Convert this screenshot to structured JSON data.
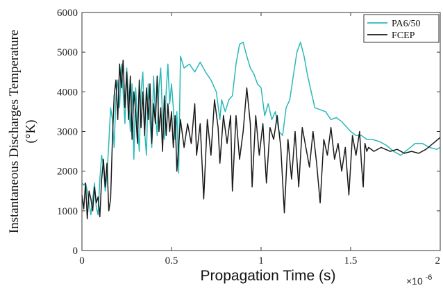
{
  "chart_data": {
    "type": "line",
    "title": "",
    "xlabel": "Propagation Time (s)",
    "ylabel_line1": "Instantaneous Discharges Temperature",
    "ylabel_line2": "(°K)",
    "x_multiplier": "×10",
    "x_multiplier_exp": "-6",
    "xlim": [
      0,
      2
    ],
    "ylim": [
      0,
      6000
    ],
    "x_ticks": [
      0,
      0.5,
      1,
      1.5,
      2
    ],
    "x_tick_labels": [
      "0",
      "0.5",
      "1",
      "1.5",
      "2"
    ],
    "y_ticks": [
      0,
      1000,
      2000,
      3000,
      4000,
      5000,
      6000
    ],
    "y_tick_labels": [
      "0",
      "1000",
      "2000",
      "3000",
      "4000",
      "5000",
      "6000"
    ],
    "grid": false,
    "legend_position": "top-right",
    "series": [
      {
        "name": "PA6/50",
        "color": "#2ab8b8",
        "points": [
          [
            0.0,
            1700
          ],
          [
            0.01,
            1650
          ],
          [
            0.02,
            1700
          ],
          [
            0.03,
            1500
          ],
          [
            0.04,
            1200
          ],
          [
            0.05,
            900
          ],
          [
            0.06,
            1300
          ],
          [
            0.07,
            1700
          ],
          [
            0.08,
            1100
          ],
          [
            0.09,
            900
          ],
          [
            0.1,
            1800
          ],
          [
            0.11,
            2400
          ],
          [
            0.12,
            2100
          ],
          [
            0.13,
            1500
          ],
          [
            0.14,
            1900
          ],
          [
            0.15,
            2700
          ],
          [
            0.16,
            3600
          ],
          [
            0.17,
            3300
          ],
          [
            0.18,
            2600
          ],
          [
            0.19,
            3900
          ],
          [
            0.2,
            4300
          ],
          [
            0.21,
            3600
          ],
          [
            0.22,
            4700
          ],
          [
            0.23,
            4000
          ],
          [
            0.24,
            3200
          ],
          [
            0.25,
            4600
          ],
          [
            0.26,
            3900
          ],
          [
            0.27,
            3000
          ],
          [
            0.28,
            4200
          ],
          [
            0.29,
            2300
          ],
          [
            0.3,
            4100
          ],
          [
            0.31,
            3200
          ],
          [
            0.32,
            2500
          ],
          [
            0.33,
            4000
          ],
          [
            0.34,
            4500
          ],
          [
            0.35,
            3000
          ],
          [
            0.36,
            2400
          ],
          [
            0.37,
            4200
          ],
          [
            0.38,
            3300
          ],
          [
            0.39,
            2600
          ],
          [
            0.4,
            4400
          ],
          [
            0.41,
            3400
          ],
          [
            0.42,
            2900
          ],
          [
            0.43,
            4100
          ],
          [
            0.44,
            4600
          ],
          [
            0.45,
            3300
          ],
          [
            0.46,
            2800
          ],
          [
            0.47,
            4000
          ],
          [
            0.48,
            4700
          ],
          [
            0.49,
            3700
          ],
          [
            0.5,
            4200
          ],
          [
            0.51,
            3600
          ],
          [
            0.52,
            2800
          ],
          [
            0.53,
            3500
          ],
          [
            0.54,
            1950
          ],
          [
            0.55,
            4900
          ],
          [
            0.57,
            4600
          ],
          [
            0.6,
            4700
          ],
          [
            0.63,
            4500
          ],
          [
            0.66,
            4750
          ],
          [
            0.69,
            4500
          ],
          [
            0.72,
            4300
          ],
          [
            0.75,
            4000
          ],
          [
            0.77,
            3300
          ],
          [
            0.78,
            3800
          ],
          [
            0.8,
            3500
          ],
          [
            0.82,
            3800
          ],
          [
            0.84,
            3900
          ],
          [
            0.86,
            4700
          ],
          [
            0.88,
            5200
          ],
          [
            0.9,
            5250
          ],
          [
            0.92,
            4900
          ],
          [
            0.94,
            4600
          ],
          [
            0.96,
            4450
          ],
          [
            0.98,
            4200
          ],
          [
            1.0,
            4100
          ],
          [
            1.02,
            3400
          ],
          [
            1.04,
            3700
          ],
          [
            1.06,
            3300
          ],
          [
            1.08,
            3500
          ],
          [
            1.1,
            3000
          ],
          [
            1.12,
            2900
          ],
          [
            1.14,
            3600
          ],
          [
            1.16,
            3800
          ],
          [
            1.18,
            4400
          ],
          [
            1.2,
            5000
          ],
          [
            1.22,
            5250
          ],
          [
            1.24,
            4900
          ],
          [
            1.26,
            4400
          ],
          [
            1.28,
            4000
          ],
          [
            1.3,
            3600
          ],
          [
            1.33,
            3550
          ],
          [
            1.36,
            3500
          ],
          [
            1.39,
            3300
          ],
          [
            1.42,
            3350
          ],
          [
            1.45,
            3250
          ],
          [
            1.48,
            3100
          ],
          [
            1.5,
            3000
          ],
          [
            1.53,
            2900
          ],
          [
            1.56,
            2900
          ],
          [
            1.59,
            2800
          ],
          [
            1.62,
            2800
          ],
          [
            1.66,
            2750
          ],
          [
            1.7,
            2650
          ],
          [
            1.74,
            2500
          ],
          [
            1.78,
            2400
          ],
          [
            1.82,
            2550
          ],
          [
            1.86,
            2700
          ],
          [
            1.9,
            2700
          ],
          [
            1.94,
            2600
          ],
          [
            1.98,
            2550
          ],
          [
            2.0,
            2600
          ]
        ]
      },
      {
        "name": "FCEP",
        "color": "#1a1a1a",
        "points": [
          [
            0.0,
            1400
          ],
          [
            0.01,
            1050
          ],
          [
            0.02,
            1700
          ],
          [
            0.03,
            800
          ],
          [
            0.04,
            1500
          ],
          [
            0.05,
            1300
          ],
          [
            0.06,
            1000
          ],
          [
            0.07,
            1600
          ],
          [
            0.08,
            1200
          ],
          [
            0.09,
            1350
          ],
          [
            0.1,
            850
          ],
          [
            0.11,
            1800
          ],
          [
            0.12,
            2300
          ],
          [
            0.13,
            1600
          ],
          [
            0.14,
            2200
          ],
          [
            0.15,
            1000
          ],
          [
            0.16,
            1300
          ],
          [
            0.17,
            2800
          ],
          [
            0.18,
            3900
          ],
          [
            0.19,
            4300
          ],
          [
            0.2,
            3300
          ],
          [
            0.21,
            4700
          ],
          [
            0.22,
            4100
          ],
          [
            0.23,
            4800
          ],
          [
            0.24,
            3600
          ],
          [
            0.25,
            4500
          ],
          [
            0.26,
            3300
          ],
          [
            0.27,
            4400
          ],
          [
            0.28,
            2800
          ],
          [
            0.29,
            4000
          ],
          [
            0.3,
            3500
          ],
          [
            0.31,
            2700
          ],
          [
            0.32,
            4300
          ],
          [
            0.33,
            3100
          ],
          [
            0.34,
            4000
          ],
          [
            0.35,
            2900
          ],
          [
            0.36,
            4100
          ],
          [
            0.37,
            3300
          ],
          [
            0.38,
            4200
          ],
          [
            0.39,
            2700
          ],
          [
            0.4,
            3700
          ],
          [
            0.41,
            3200
          ],
          [
            0.42,
            4400
          ],
          [
            0.43,
            3000
          ],
          [
            0.44,
            3600
          ],
          [
            0.45,
            2500
          ],
          [
            0.46,
            3900
          ],
          [
            0.47,
            2900
          ],
          [
            0.48,
            3700
          ],
          [
            0.49,
            3000
          ],
          [
            0.5,
            3500
          ],
          [
            0.51,
            2600
          ],
          [
            0.52,
            3400
          ],
          [
            0.53,
            2000
          ],
          [
            0.55,
            3300
          ],
          [
            0.57,
            2600
          ],
          [
            0.59,
            3200
          ],
          [
            0.61,
            2700
          ],
          [
            0.63,
            3700
          ],
          [
            0.64,
            2400
          ],
          [
            0.66,
            3200
          ],
          [
            0.68,
            1300
          ],
          [
            0.7,
            3300
          ],
          [
            0.72,
            2400
          ],
          [
            0.74,
            3800
          ],
          [
            0.76,
            3100
          ],
          [
            0.77,
            2200
          ],
          [
            0.79,
            3400
          ],
          [
            0.81,
            2700
          ],
          [
            0.83,
            3400
          ],
          [
            0.84,
            1500
          ],
          [
            0.86,
            3400
          ],
          [
            0.88,
            2300
          ],
          [
            0.9,
            3000
          ],
          [
            0.92,
            4100
          ],
          [
            0.94,
            3200
          ],
          [
            0.95,
            1600
          ],
          [
            0.97,
            3400
          ],
          [
            0.99,
            2400
          ],
          [
            1.01,
            3200
          ],
          [
            1.03,
            1700
          ],
          [
            1.05,
            3100
          ],
          [
            1.07,
            2800
          ],
          [
            1.09,
            3400
          ],
          [
            1.11,
            2600
          ],
          [
            1.13,
            950
          ],
          [
            1.15,
            2800
          ],
          [
            1.17,
            1800
          ],
          [
            1.19,
            3000
          ],
          [
            1.21,
            1600
          ],
          [
            1.23,
            3100
          ],
          [
            1.25,
            2600
          ],
          [
            1.27,
            2100
          ],
          [
            1.29,
            3000
          ],
          [
            1.31,
            2200
          ],
          [
            1.33,
            1200
          ],
          [
            1.35,
            2800
          ],
          [
            1.37,
            2400
          ],
          [
            1.39,
            3100
          ],
          [
            1.41,
            2300
          ],
          [
            1.43,
            2700
          ],
          [
            1.45,
            2000
          ],
          [
            1.47,
            2600
          ],
          [
            1.49,
            1400
          ],
          [
            1.51,
            2900
          ],
          [
            1.53,
            2400
          ],
          [
            1.55,
            3000
          ],
          [
            1.56,
            2200
          ],
          [
            1.57,
            1600
          ],
          [
            1.58,
            2700
          ],
          [
            1.59,
            2500
          ],
          [
            1.6,
            2600
          ],
          [
            1.63,
            2500
          ],
          [
            1.67,
            2600
          ],
          [
            1.72,
            2500
          ],
          [
            1.76,
            2550
          ],
          [
            1.8,
            2450
          ],
          [
            1.84,
            2500
          ],
          [
            1.88,
            2450
          ],
          [
            1.92,
            2550
          ],
          [
            1.96,
            2700
          ],
          [
            2.0,
            2850
          ]
        ]
      }
    ]
  }
}
